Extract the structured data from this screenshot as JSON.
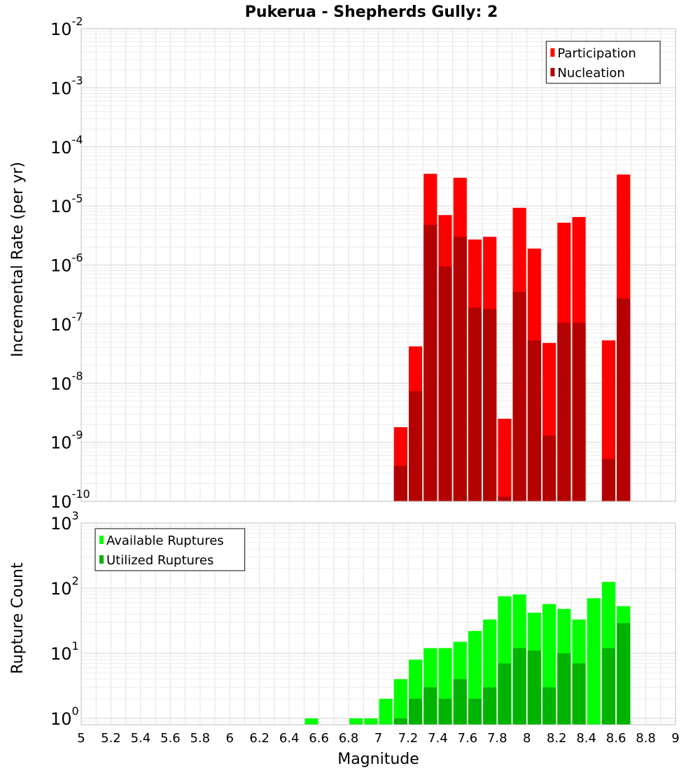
{
  "chart_data": [
    {
      "type": "bar",
      "title": "Pukerua - Shepherds Gully: 2",
      "ylabel": "Incremental Rate (per yr)",
      "xlabel": "",
      "yscale": "log",
      "ylim": [
        1e-10,
        0.01
      ],
      "xlim": [
        5,
        9
      ],
      "bar_mode": "overlay",
      "grid": true,
      "legend_position": "top-right",
      "colors": {
        "Participation": "#ff0000",
        "Nucleation": "#b30000"
      },
      "y_ticks": [
        {
          "base": "10",
          "exp": "-2"
        },
        {
          "base": "10",
          "exp": "-3"
        },
        {
          "base": "10",
          "exp": "-4"
        },
        {
          "base": "10",
          "exp": "-5"
        },
        {
          "base": "10",
          "exp": "-6"
        },
        {
          "base": "10",
          "exp": "-7"
        },
        {
          "base": "10",
          "exp": "-8"
        },
        {
          "base": "10",
          "exp": "-9"
        },
        {
          "base": "10",
          "exp": "-10"
        }
      ],
      "x": [
        7.15,
        7.25,
        7.35,
        7.45,
        7.55,
        7.65,
        7.75,
        7.85,
        7.95,
        8.05,
        8.15,
        8.25,
        8.35,
        8.45,
        8.55,
        8.65
      ],
      "series": [
        {
          "name": "Participation",
          "values": [
            1.8e-09,
            4.2e-08,
            3.5e-05,
            7e-06,
            3e-05,
            2.7e-06,
            3e-06,
            2.5e-09,
            9.3e-06,
            1.9e-06,
            4.8e-08,
            5.2e-06,
            6.5e-06,
            null,
            5.3e-08,
            3.4e-05
          ]
        },
        {
          "name": "Nucleation",
          "values": [
            4e-10,
            7.3e-09,
            4.8e-06,
            9.5e-07,
            3e-06,
            1.9e-07,
            1.8e-07,
            1.2e-10,
            3.5e-07,
            5.3e-08,
            1.3e-09,
            1.05e-07,
            1.05e-07,
            null,
            5.2e-10,
            2.7e-07
          ]
        }
      ]
    },
    {
      "type": "bar",
      "title": "",
      "ylabel": "Rupture Count",
      "xlabel": "Magnitude",
      "yscale": "log",
      "ylim": [
        0.8,
        1000
      ],
      "xlim": [
        5,
        9
      ],
      "bar_mode": "overlay",
      "grid": true,
      "legend_position": "top-left",
      "colors": {
        "Available Ruptures": "#00ff00",
        "Utilized Ruptures": "#00b300"
      },
      "y_ticks": [
        {
          "base": "10",
          "exp": "3"
        },
        {
          "base": "10",
          "exp": "2"
        },
        {
          "base": "10",
          "exp": "1"
        },
        {
          "base": "10",
          "exp": "0"
        }
      ],
      "x_tick_labels": [
        "5",
        "5.2",
        "5.4",
        "5.6",
        "5.8",
        "6",
        "6.2",
        "6.4",
        "6.6",
        "6.8",
        "7",
        "7.2",
        "7.4",
        "7.6",
        "7.8",
        "8",
        "8.2",
        "8.4",
        "8.6",
        "8.8",
        "9"
      ],
      "x": [
        6.55,
        6.85,
        6.95,
        7.05,
        7.15,
        7.25,
        7.35,
        7.45,
        7.55,
        7.65,
        7.75,
        7.85,
        7.95,
        8.05,
        8.15,
        8.25,
        8.35,
        8.45,
        8.55,
        8.65
      ],
      "series": [
        {
          "name": "Available Ruptures",
          "values": [
            1,
            1,
            1,
            2,
            4,
            8,
            12,
            12,
            15,
            22,
            33,
            75,
            80,
            42,
            57,
            48,
            33,
            70,
            125,
            53
          ]
        },
        {
          "name": "Utilized Ruptures",
          "values": [
            null,
            null,
            null,
            null,
            1,
            2,
            3,
            2,
            4,
            2,
            3,
            7,
            12,
            11,
            3,
            10,
            7,
            null,
            12,
            29
          ]
        }
      ]
    }
  ]
}
